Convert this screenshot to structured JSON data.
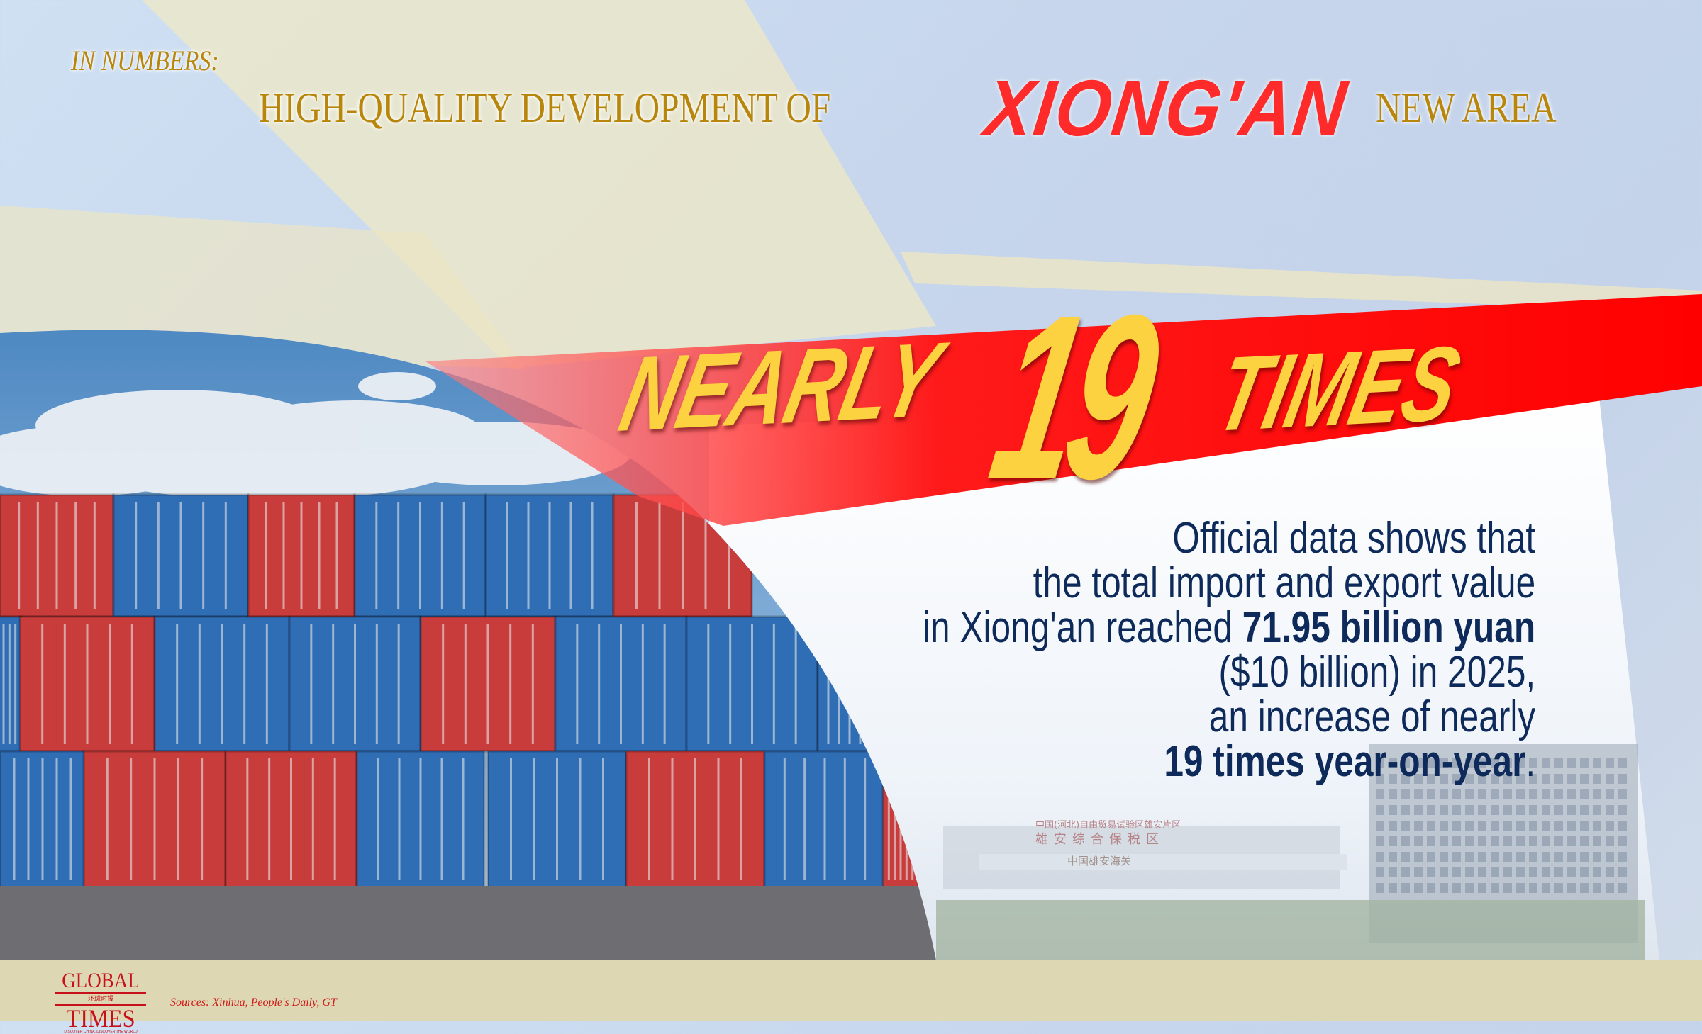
{
  "header": {
    "subtitle": "IN NUMBERS:",
    "title_prefix": "HIGH-QUALITY DEVELOPMENT OF",
    "title_highlight": "XIONG'AN",
    "title_suffix": "NEW AREA"
  },
  "headline": {
    "word1": "NEARLY",
    "number": "19",
    "word2": "TIMES"
  },
  "body": {
    "line1": "Official data shows that",
    "line2": "the total import and export value",
    "line3_pre": "in Xiong'an reached ",
    "line3_bold": "71.95 billion yuan",
    "line4": "($10 billion) in 2025,",
    "line5": "an increase of nearly",
    "line6_bold": "19 times year-on-year",
    "line6_end": "."
  },
  "photo_sign": {
    "line1": "中国(河北)自由贸易试验区雄安片区",
    "line2": "雄安综合保税区",
    "line3": "中国雄安海关"
  },
  "footer": {
    "logo_top": "GLOBAL",
    "logo_cn": "环球时报",
    "logo_bottom": "TIMES",
    "logo_tagline": "DISCOVER CHINA, DISCOVER THE WORLD",
    "sources": "Sources: Xinhua, People's Daily, GT"
  },
  "colors": {
    "title_gold": "#b8860b",
    "highlight_red": "#ff2a2a",
    "band_red": "#ff1a1a",
    "headline_yellow": "#fdd240",
    "body_navy": "#0d2a5a",
    "container_red": "#c93c3c",
    "container_blue": "#2f6db5",
    "footer_bg": "#ddd8b3"
  }
}
